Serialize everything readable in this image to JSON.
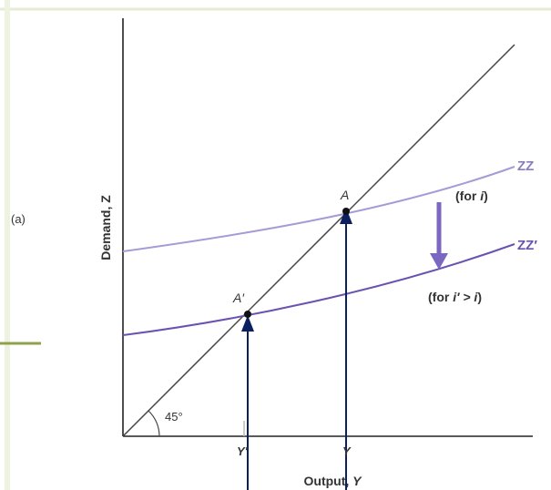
{
  "panel": {
    "label": "(a)"
  },
  "axes": {
    "ylabel": "Demand, Z",
    "xlabel_text": "Output, ",
    "xlabel_var": "Y"
  },
  "angle_label": "45°",
  "curves": {
    "zz": {
      "label": "ZZ",
      "note_prefix": "(for ",
      "note_var": "i",
      "note_suffix": ")"
    },
    "zz_prime": {
      "label": "ZZ",
      "prime": "′",
      "note_prefix": "(for ",
      "note_var": "i′ > i",
      "note_suffix": ")"
    }
  },
  "points": {
    "a": {
      "label": "A"
    },
    "a_prime": {
      "label": "A′"
    }
  },
  "ticks": {
    "y_prime": "Y′",
    "y": "Y"
  },
  "colors": {
    "axis": "#222222",
    "line45": "#444444",
    "zz": "#a79ad6",
    "zz_prime": "#6a52b0",
    "arrow_shift": "#7b66c2",
    "arrow_up": "#0c2060",
    "frame": "#dfe7c8",
    "accent_tick": "#8fa24a"
  }
}
